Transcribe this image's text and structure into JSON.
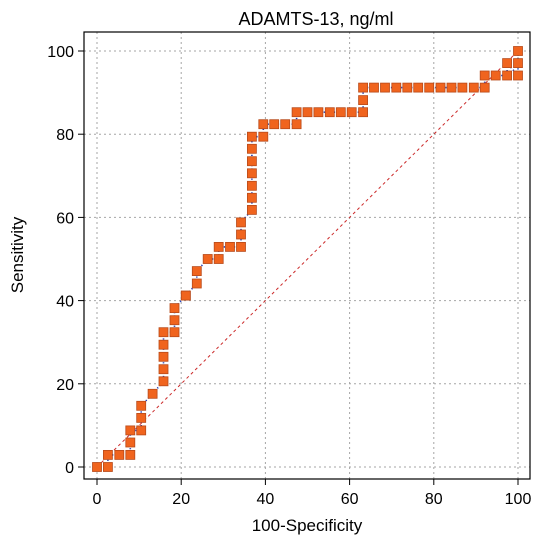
{
  "chart_data": {
    "type": "line",
    "title": "ADAMTS-13, ng/ml",
    "xlabel": "100-Specificity",
    "ylabel": "Sensitivity",
    "xlim": [
      0,
      100
    ],
    "ylim": [
      0,
      100
    ],
    "xticks": [
      "0",
      "20",
      "40",
      "60",
      "80",
      "100"
    ],
    "yticks": [
      "0",
      "20",
      "40",
      "60",
      "80",
      "100"
    ],
    "grid": true,
    "reference_line": true,
    "colors": {
      "curve": "#1f3bb3",
      "points": "#f0641e",
      "reference": "#cc2a2a"
    },
    "series": [
      {
        "x": [
          0,
          2.6,
          2.6,
          5.3,
          7.9,
          7.9,
          7.9,
          10.5,
          10.5,
          10.5,
          13.2,
          15.8,
          15.8,
          15.8,
          15.8,
          15.8,
          18.4,
          18.4,
          18.4,
          21.1,
          21.1,
          23.7,
          23.7,
          26.3,
          28.9,
          28.9,
          31.6,
          34.2,
          34.2,
          34.2,
          36.8,
          36.8,
          36.8,
          36.8,
          36.8,
          36.8,
          36.8,
          39.5,
          39.5,
          42.1,
          44.7,
          47.4,
          47.4,
          50,
          52.6,
          55.3,
          57.9,
          60.5,
          63.2,
          63.2,
          63.2,
          65.8,
          68.4,
          71.1,
          73.7,
          76.3,
          78.9,
          81.6,
          84.2,
          86.8,
          89.5,
          92.1,
          92.1,
          94.7,
          97.4,
          97.4,
          100,
          100,
          100
        ],
        "y": [
          0,
          0,
          2.9,
          2.9,
          2.9,
          5.9,
          8.8,
          8.8,
          11.8,
          14.7,
          17.6,
          20.6,
          23.5,
          26.5,
          29.4,
          32.4,
          32.4,
          35.3,
          38.2,
          41.2,
          41.2,
          44.1,
          47.1,
          50,
          50,
          52.9,
          52.9,
          52.9,
          55.9,
          58.8,
          61.8,
          64.7,
          67.6,
          70.6,
          73.5,
          76.5,
          79.4,
          79.4,
          82.4,
          82.4,
          82.4,
          82.4,
          85.3,
          85.3,
          85.3,
          85.3,
          85.3,
          85.3,
          85.3,
          88.2,
          91.2,
          91.2,
          91.2,
          91.2,
          91.2,
          91.2,
          91.2,
          91.2,
          91.2,
          91.2,
          91.2,
          91.2,
          94.1,
          94.1,
          94.1,
          97.1,
          94.1,
          97.1,
          100
        ]
      }
    ]
  }
}
